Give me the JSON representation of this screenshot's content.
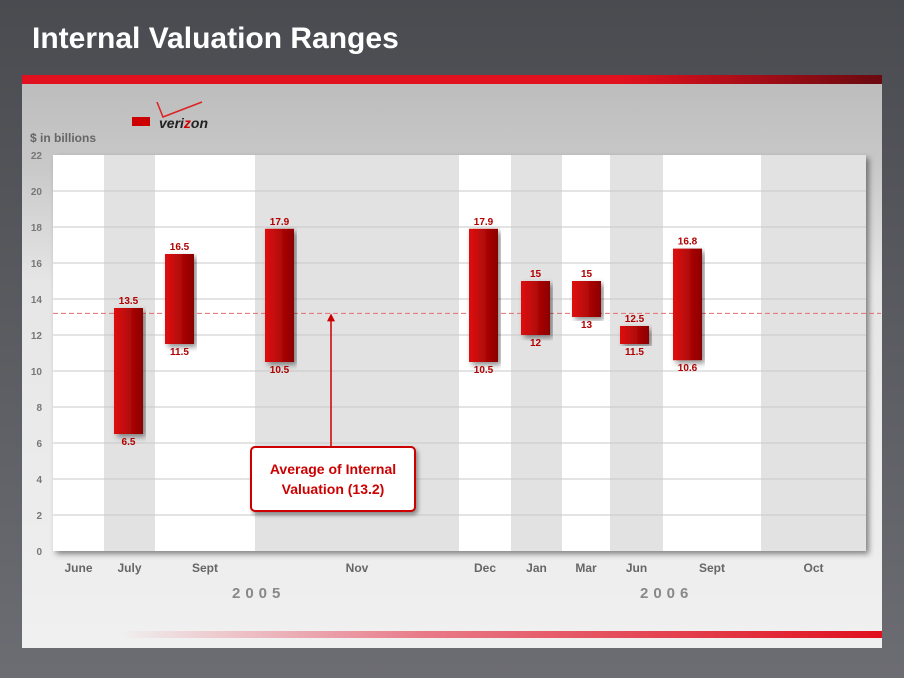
{
  "title": "Internal Valuation Ranges",
  "logo_text": "verizon",
  "chart_data": {
    "type": "floating-bar",
    "ylabel": "$ in billions",
    "ylim": [
      0,
      22
    ],
    "yticks": [
      0,
      2,
      4,
      6,
      8,
      10,
      12,
      14,
      16,
      18,
      20,
      22
    ],
    "grid": true,
    "categories": [
      "June",
      "July",
      "Sept",
      "Nov",
      "Dec",
      "Jan",
      "Mar",
      "Jun",
      "Sept",
      "Oct"
    ],
    "years": [
      {
        "label": "2005"
      },
      {
        "label": "2006"
      }
    ],
    "ranges": [
      null,
      {
        "low": 6.5,
        "high": 13.5
      },
      {
        "low": 11.5,
        "high": 16.5
      },
      {
        "low": 10.5,
        "high": 17.9
      },
      {
        "low": 10.5,
        "high": 17.9
      },
      {
        "low": 12,
        "high": 15
      },
      {
        "low": 13,
        "high": 15
      },
      {
        "low": 11.5,
        "high": 12.5
      },
      {
        "low": 10.6,
        "high": 16.8
      },
      null
    ],
    "average": {
      "value": 13.2,
      "label": "Average of Internal Valuation (13.2)"
    },
    "colors": {
      "bar": "#c00000",
      "label": "#b00000",
      "avg_line": "#e07070"
    }
  }
}
